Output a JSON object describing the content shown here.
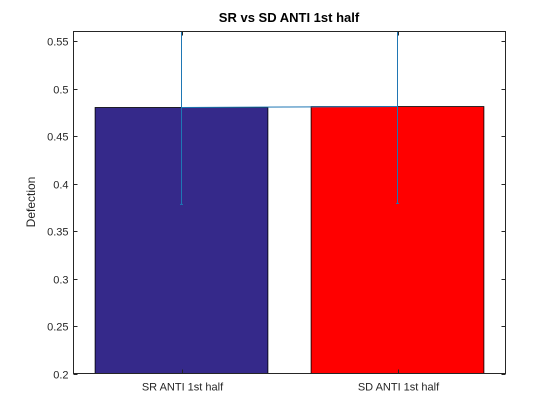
{
  "chart_data": {
    "type": "bar",
    "title": "SR vs SD ANTI 1st half",
    "xlabel": "",
    "ylabel": "Defection",
    "categories": [
      "SR ANTI 1st half",
      "SD ANTI 1st half"
    ],
    "values": [
      0.48,
      0.481
    ],
    "error_bars": [
      {
        "lower": 0.378,
        "upper": 0.58
      },
      {
        "lower": 0.379,
        "upper": 0.58
      }
    ],
    "bar_colors": [
      "#35298a",
      "#ff0000"
    ],
    "error_bar_color": "#1f77b4",
    "ylim": [
      0.2,
      0.56
    ],
    "yticks": [
      0.2,
      0.25,
      0.3,
      0.35,
      0.4,
      0.45,
      0.5,
      0.55
    ],
    "ytick_labels": [
      "0.2",
      "0.25",
      "0.3",
      "0.35",
      "0.4",
      "0.45",
      "0.5",
      "0.55"
    ],
    "grid": false,
    "legend": "none"
  }
}
